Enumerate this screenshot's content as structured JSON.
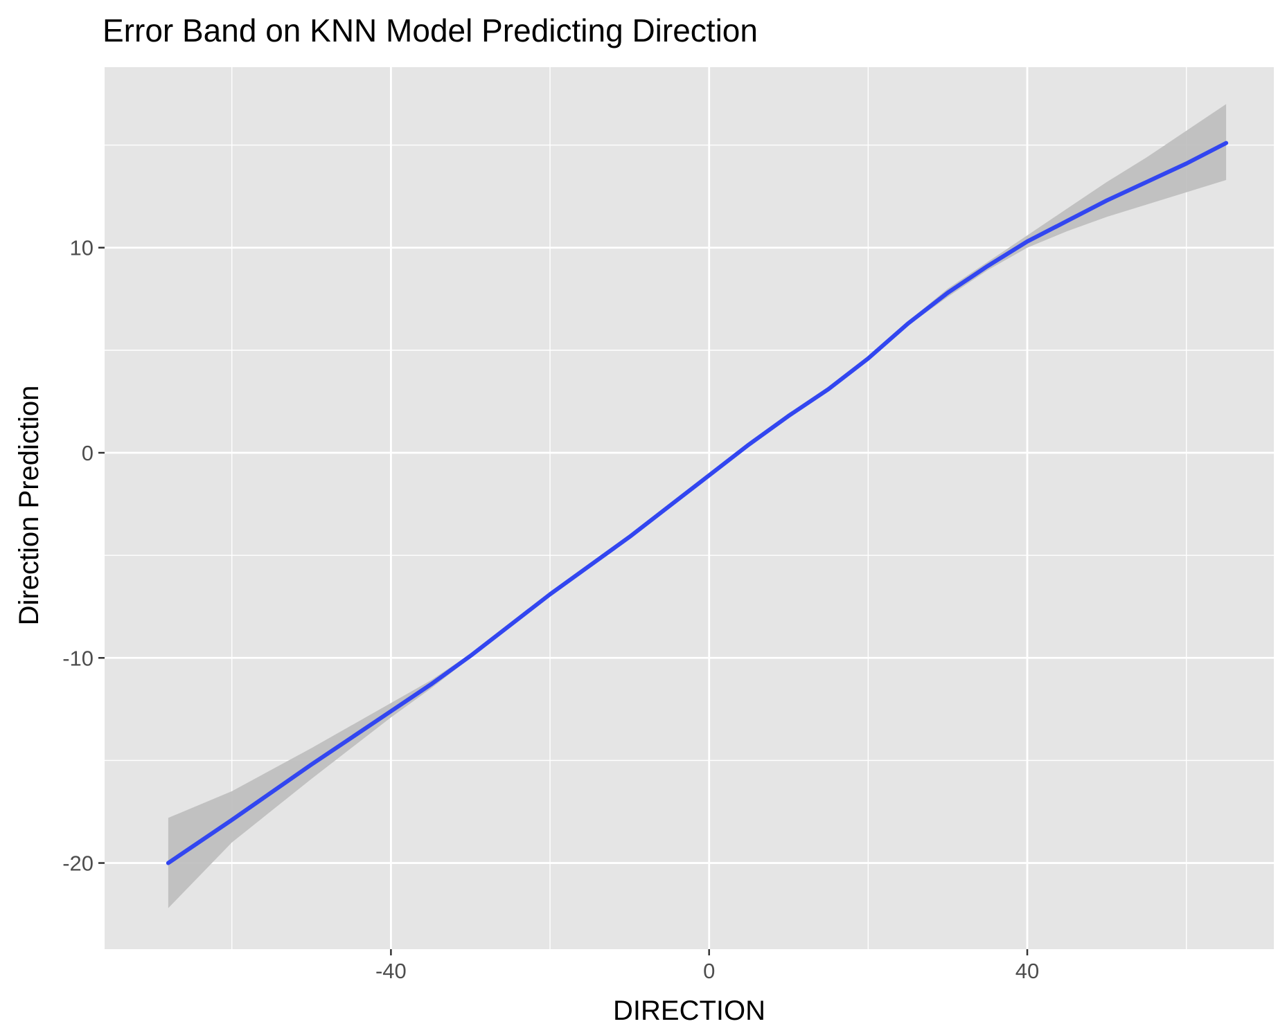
{
  "chart_data": {
    "type": "line",
    "title": "Error Band on KNN Model Predicting Direction",
    "xlabel": "DIRECTION",
    "ylabel": "Direction Prediction",
    "xlim": [
      -76,
      71
    ],
    "ylim": [
      -24.2,
      18.8
    ],
    "x_ticks": [
      -40,
      0,
      40
    ],
    "x_tick_labels": [
      "-40",
      "0",
      "40"
    ],
    "x_minor_ticks": [
      -60,
      -20,
      20,
      60
    ],
    "y_ticks": [
      -20,
      -10,
      0,
      10
    ],
    "y_tick_labels": [
      "-20",
      "-10",
      "0",
      "10"
    ],
    "y_minor_ticks": [
      -15,
      -5,
      5,
      15
    ],
    "grid": true,
    "colors": {
      "panel": "#e5e5e5",
      "grid": "#ffffff",
      "line": "#3246f0",
      "band": "#bdbdbd"
    },
    "series": [
      {
        "x": [
          -68,
          -60,
          -50,
          -45,
          -40,
          -35,
          -30,
          -25,
          -20,
          -15,
          -10,
          -5,
          0,
          5,
          10,
          15,
          20,
          25,
          30,
          35,
          40,
          45,
          50,
          55,
          60,
          65
        ],
        "y": [
          -20.0,
          -17.9,
          -15.2,
          -13.9,
          -12.6,
          -11.3,
          -9.9,
          -8.4,
          -6.9,
          -5.5,
          -4.1,
          -2.6,
          -1.1,
          0.4,
          1.8,
          3.1,
          4.6,
          6.3,
          7.8,
          9.1,
          10.3,
          11.3,
          12.3,
          13.2,
          14.1,
          15.1
        ],
        "lower": [
          -22.2,
          -19.0,
          -15.9,
          -14.4,
          -12.9,
          -11.5,
          -10.0,
          -8.5,
          -7.0,
          -5.6,
          -4.2,
          -2.7,
          -1.2,
          0.3,
          1.7,
          3.0,
          4.5,
          6.2,
          7.6,
          8.9,
          10.0,
          10.8,
          11.5,
          12.1,
          12.7,
          13.3
        ],
        "upper": [
          -17.8,
          -16.5,
          -14.4,
          -13.3,
          -12.2,
          -11.1,
          -9.8,
          -8.3,
          -6.8,
          -5.4,
          -4.0,
          -2.5,
          -1.0,
          0.5,
          1.9,
          3.2,
          4.7,
          6.4,
          8.0,
          9.3,
          10.6,
          11.9,
          13.2,
          14.4,
          15.7,
          17.0
        ]
      }
    ]
  }
}
